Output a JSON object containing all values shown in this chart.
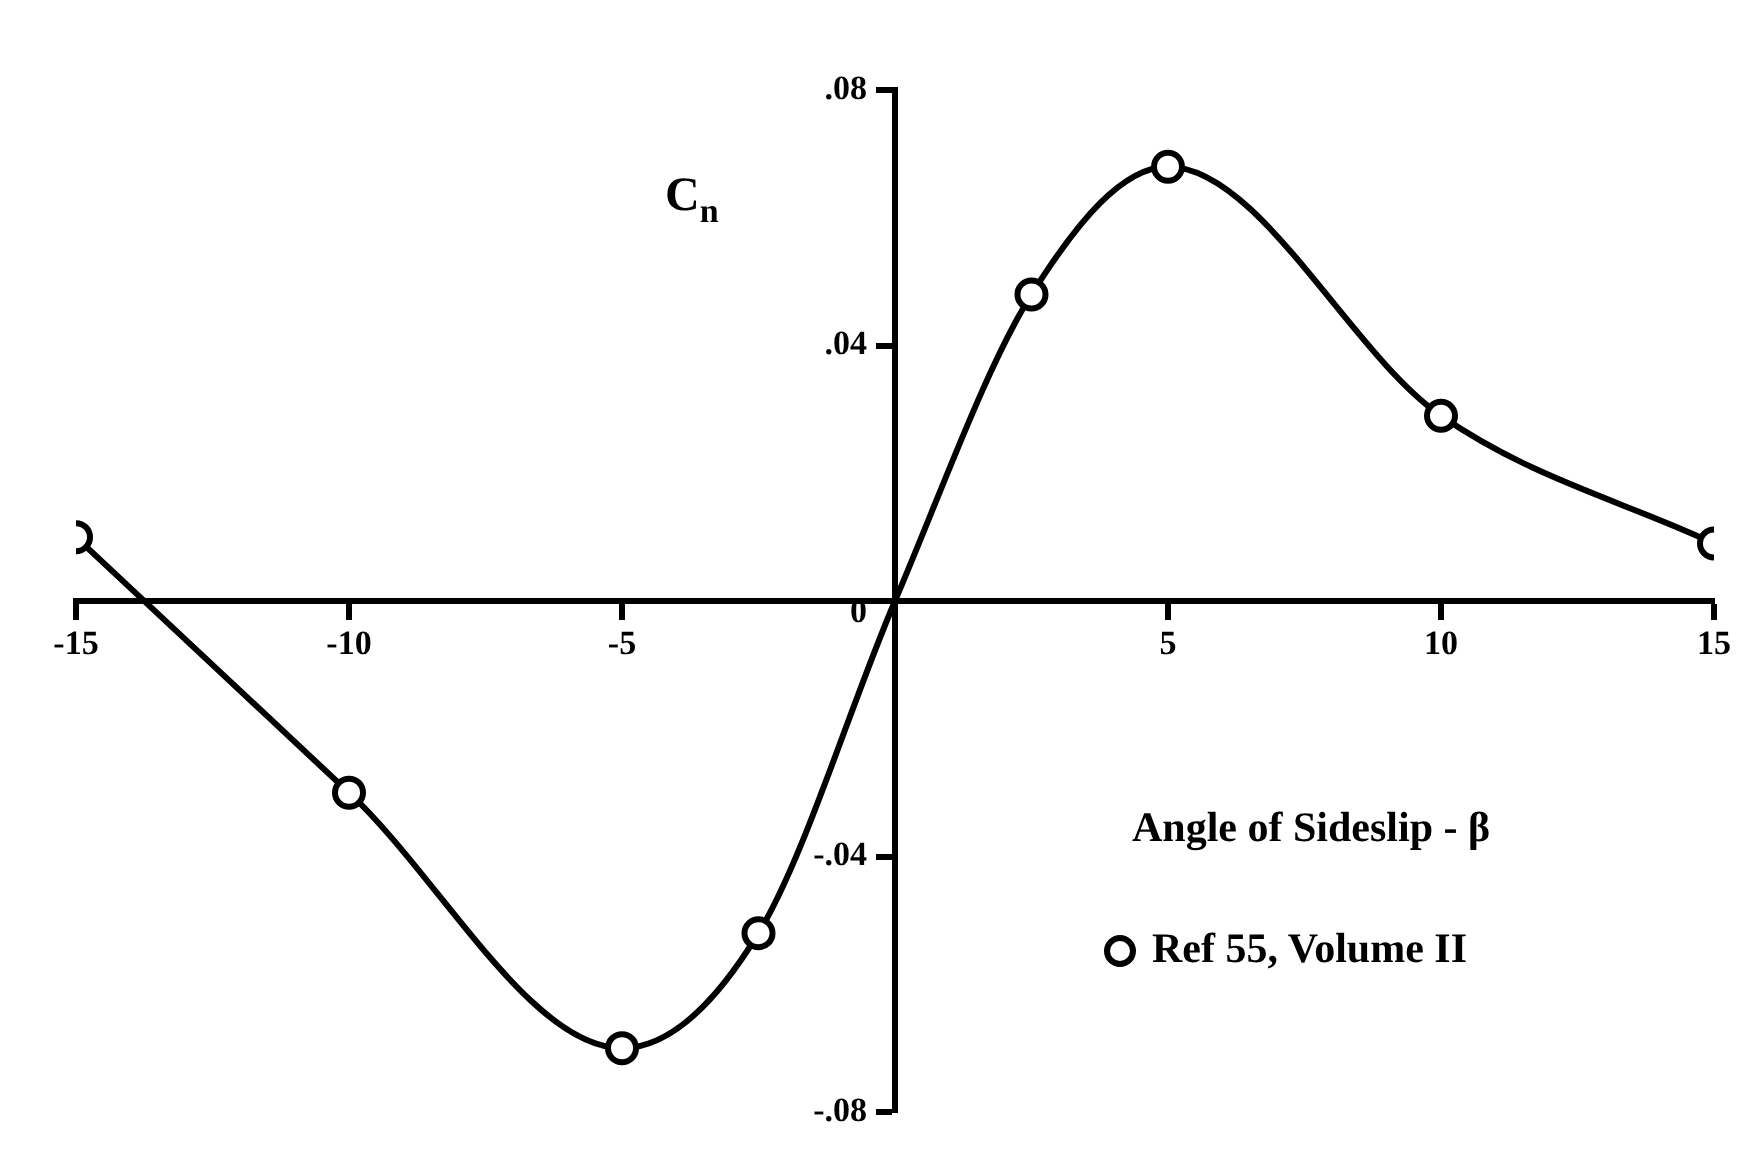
{
  "chart_data": {
    "type": "line",
    "xlabel": "Angle of Sideslip - β",
    "ylabel": "C$_{n}$",
    "xlim": [
      -15,
      15
    ],
    "ylim": [
      -0.08,
      0.08
    ],
    "xticks": [
      -15,
      -10,
      -5,
      5,
      10,
      15
    ],
    "yticks": [
      {
        "value": -0.08,
        "label": "-.08"
      },
      {
        "value": -0.04,
        "label": "-.04"
      },
      {
        "value": 0,
        "label": "0"
      },
      {
        "value": 0.04,
        "label": ".04"
      },
      {
        "value": 0.08,
        "label": ".08"
      }
    ],
    "grid": false,
    "legend": "right",
    "series": [
      {
        "color": "#000000",
        "marker": "none",
        "x": [
          -15,
          -10,
          -5,
          -2.5,
          0,
          2.5,
          5,
          10,
          15
        ],
        "values": [
          0.01,
          -0.03,
          -0.07,
          -0.052,
          0,
          0.048,
          0.068,
          0.029,
          0.009
        ]
      },
      {
        "type": "scatter",
        "name": "Ref 55, Volume II",
        "color": "#000000",
        "marker": "circle",
        "x": [
          -15,
          -10,
          -5,
          -2.5,
          2.5,
          5,
          10,
          15
        ],
        "values": [
          0.01,
          -0.03,
          -0.07,
          -0.052,
          0.048,
          0.068,
          0.029,
          0.009
        ]
      }
    ]
  }
}
